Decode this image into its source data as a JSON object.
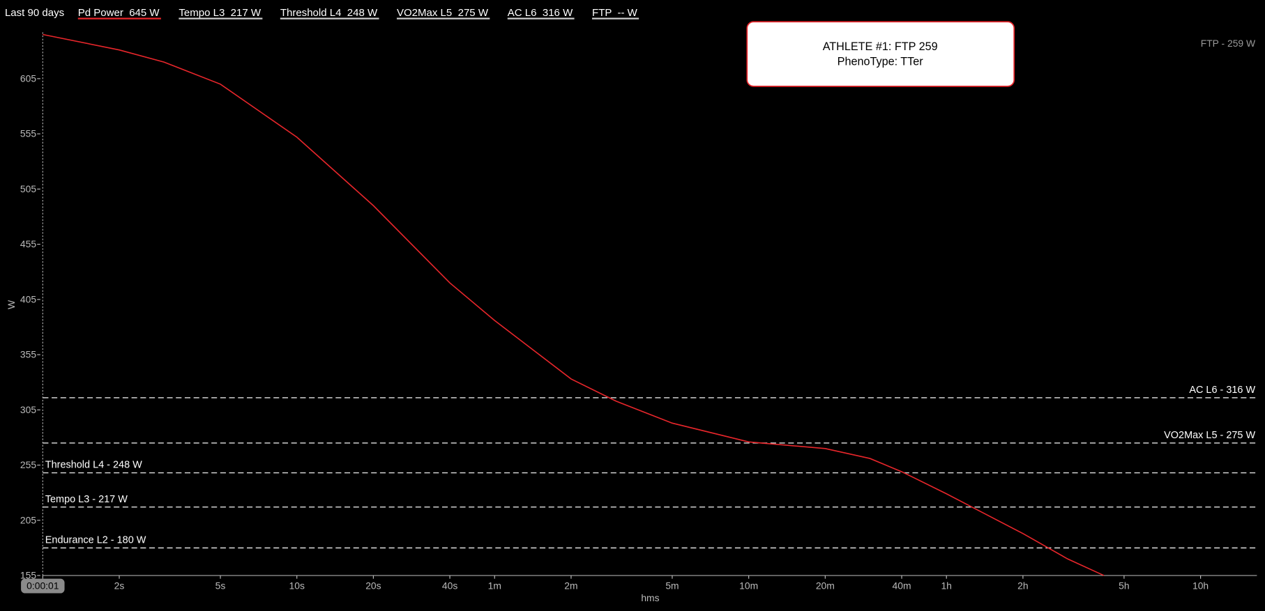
{
  "chart_data": {
    "type": "line",
    "period": "Last 90 days",
    "xlabel": "hms",
    "ylabel": "W",
    "log_x": true,
    "xlim": [
      1,
      60000
    ],
    "ylim": [
      155,
      647
    ],
    "xticks": [
      {
        "value": 1,
        "label": "0:00:01"
      },
      {
        "value": 2,
        "label": "2s"
      },
      {
        "value": 5,
        "label": "5s"
      },
      {
        "value": 10,
        "label": "10s"
      },
      {
        "value": 20,
        "label": "20s"
      },
      {
        "value": 40,
        "label": "40s"
      },
      {
        "value": 60,
        "label": "1m"
      },
      {
        "value": 120,
        "label": "2m"
      },
      {
        "value": 300,
        "label": "5m"
      },
      {
        "value": 600,
        "label": "10m"
      },
      {
        "value": 1200,
        "label": "20m"
      },
      {
        "value": 2400,
        "label": "40m"
      },
      {
        "value": 3600,
        "label": "1h"
      },
      {
        "value": 7200,
        "label": "2h"
      },
      {
        "value": 18000,
        "label": "5h"
      },
      {
        "value": 36000,
        "label": "10h"
      }
    ],
    "yticks": [
      155,
      205,
      255,
      305,
      355,
      405,
      455,
      505,
      555,
      605
    ],
    "x": [
      1,
      2,
      3,
      5,
      10,
      20,
      40,
      60,
      120,
      180,
      300,
      600,
      1200,
      1800,
      2400,
      3600,
      7200,
      10800,
      15000
    ],
    "series": [
      {
        "name": "Pd Power  645 W",
        "color": "#e8262b",
        "values": [
          645,
          631,
          620,
          600,
          552,
          490,
          420,
          386,
          333,
          313,
          293,
          276,
          270,
          261,
          249,
          229,
          193,
          170,
          155
        ]
      }
    ],
    "legend_extra": [
      "Tempo L3  217 W",
      "Threshold L4  248 W",
      "VO2Max L5  275 W",
      "AC L6  316 W",
      "FTP  -- W"
    ],
    "zones": [
      {
        "label": "AC L6 - 316 W",
        "value": 316,
        "side": "right"
      },
      {
        "label": "VO2Max L5 - 275 W",
        "value": 275,
        "side": "right"
      },
      {
        "label": "Threshold L4 - 248 W",
        "value": 248,
        "side": "left"
      },
      {
        "label": "Tempo L3 - 217 W",
        "value": 217,
        "side": "left"
      },
      {
        "label": "Endurance L2 - 180 W",
        "value": 180,
        "side": "left"
      }
    ],
    "ftp_label": "FTP - 259 W",
    "annotation": [
      "ATHLETE #1: FTP 259",
      "PhenoType: TTer"
    ]
  }
}
